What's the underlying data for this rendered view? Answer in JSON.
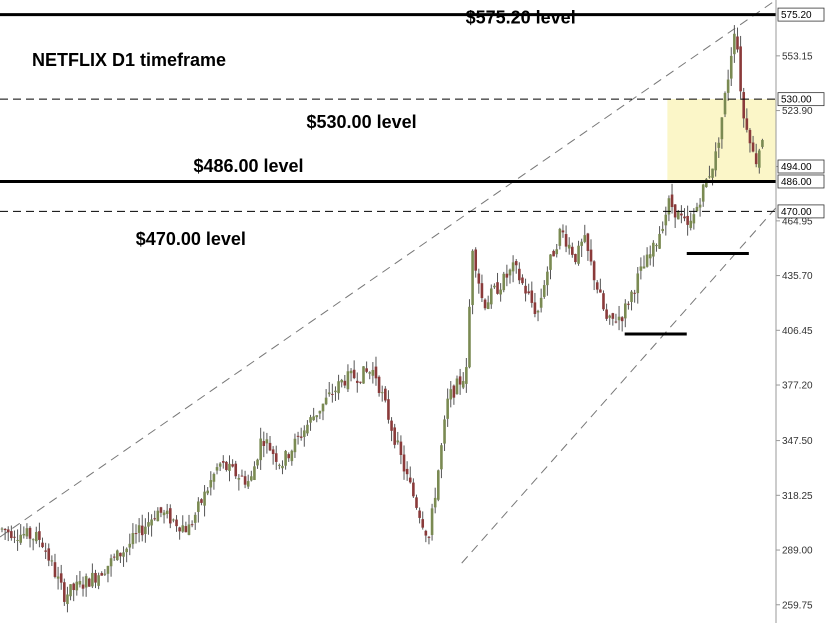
{
  "chart_data": {
    "type": "candlestick",
    "title": "NETFLIX D1 timeframe",
    "ylim": [
      250,
      583
    ],
    "y_ticks": [
      259.75,
      289.0,
      318.25,
      347.5,
      377.2,
      406.45,
      435.7,
      464.95,
      494.0,
      523.9,
      553.15
    ],
    "y_tick_labels": [
      "259.75",
      "289.00",
      "318.25",
      "347.50",
      "377.20",
      "406.45",
      "435.70",
      "464.95",
      "494.00",
      "523.90",
      "553.15"
    ],
    "levels": [
      {
        "value": 575.2,
        "label": "575.20",
        "style": "solid"
      },
      {
        "value": 530.0,
        "label": "530.00",
        "style": "dashed"
      },
      {
        "value": 486.0,
        "label": "486.00",
        "style": "solid"
      },
      {
        "value": 470.0,
        "label": "470.00",
        "style": "dashed"
      }
    ],
    "price_tags": [
      "575.20",
      "530.00",
      "494.00",
      "486.00",
      "470.00"
    ],
    "annotations": [
      {
        "text": "$575.20 level",
        "x": 0.6,
        "y": 570.5
      },
      {
        "text": "$530.00 level",
        "x": 0.395,
        "y": 514.5
      },
      {
        "text": "$486.00 level",
        "x": -0.06,
        "y": 491.0
      },
      {
        "text": "$470.00 level",
        "x": 0.175,
        "y": 452.0
      }
    ],
    "zone": {
      "x_from": 0.86,
      "x_to": 1.0,
      "y_from": 486.0,
      "y_to": 530.0,
      "color": "#fbf6c8"
    },
    "channels": [
      {
        "x1": 0.0,
        "y1": 296,
        "x2": 1.0,
        "y2": 583
      },
      {
        "x1": 0.595,
        "y1": 282,
        "x2": 1.0,
        "y2": 472
      }
    ],
    "support_lines": [
      {
        "x1": 0.805,
        "x2": 0.885,
        "y": 404.5
      },
      {
        "x1": 0.885,
        "x2": 0.965,
        "y": 447.5
      }
    ],
    "ohlc_path_x": [
      0.0,
      0.05,
      0.08,
      0.12,
      0.16,
      0.2,
      0.24,
      0.28,
      0.32,
      0.335,
      0.36,
      0.4,
      0.44,
      0.48,
      0.52,
      0.55,
      0.575,
      0.6,
      0.605,
      0.62,
      0.66,
      0.69,
      0.7,
      0.72,
      0.74,
      0.75,
      0.78,
      0.8,
      0.82,
      0.84,
      0.86,
      0.885,
      0.9,
      0.92,
      0.935,
      0.945,
      0.955,
      0.962,
      0.97,
      0.98,
      0.99,
      1.0
    ],
    "ohlc_path_y": [
      300,
      295,
      265,
      275,
      290,
      310,
      300,
      335,
      325,
      350,
      335,
      360,
      380,
      385,
      330,
      295,
      370,
      385,
      455,
      420,
      440,
      415,
      435,
      460,
      445,
      455,
      410,
      415,
      435,
      450,
      475,
      460,
      478,
      500,
      540,
      572,
      520,
      515,
      495,
      510,
      505,
      492
    ],
    "grid": false,
    "legend": "none"
  }
}
